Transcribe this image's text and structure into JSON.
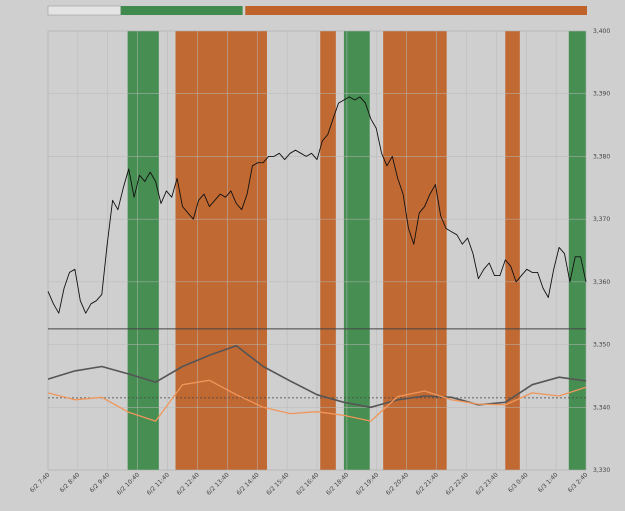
{
  "colors": {
    "background": "#cfcfcf",
    "grid": "#b8b8b8",
    "price_line": "#111111",
    "green_band": "#3f8a4c",
    "orange_band": "#c0632a",
    "indicator_gray": "#555555",
    "indicator_orange": "#f0965a",
    "top_bar_empty": "#e4e4e4"
  },
  "chart_data": {
    "type": "line",
    "x_tick_labels": [
      "6/2 7:40",
      "6/2 8:40",
      "6/2 9:40",
      "6/2 10:40",
      "6/2 11:40",
      "6/2 12:40",
      "6/2 13:40",
      "6/2 14:40",
      "6/2 15:40",
      "6/2 16:40",
      "6/2 18:40",
      "6/2 19:40",
      "6/2 20:40",
      "6/2 21:40",
      "6/2 22:40",
      "6/2 23:40",
      "6/3 0:40",
      "6/3 1:40",
      "6/3 2:40"
    ],
    "y_tick_labels": [
      "3,400",
      "3,390",
      "3,380",
      "3,370",
      "3,360",
      "3,350",
      "3,340",
      "3,330"
    ],
    "ylim": [
      3330,
      3400
    ],
    "xlim": [
      0,
      100
    ],
    "grid": true,
    "bands": [
      {
        "color": "green",
        "x0": 14.8,
        "x1": 20.6
      },
      {
        "color": "orange",
        "x0": 23.7,
        "x1": 40.7
      },
      {
        "color": "orange",
        "x0": 50.6,
        "x1": 53.5
      },
      {
        "color": "green",
        "x0": 55.0,
        "x1": 59.8
      },
      {
        "color": "orange",
        "x0": 62.3,
        "x1": 74.1
      },
      {
        "color": "orange",
        "x0": 85.0,
        "x1": 87.7
      },
      {
        "color": "green",
        "x0": 96.8,
        "x1": 100
      }
    ],
    "top_bar_segments": [
      {
        "color": "empty",
        "from": 0,
        "to": 0.135
      },
      {
        "color": "green",
        "from": 0.135,
        "to": 0.361
      },
      {
        "color": "orange",
        "from": 0.366,
        "to": 1.0
      }
    ],
    "series": [
      {
        "role": "price",
        "x": [
          0,
          1,
          2,
          3,
          4,
          5,
          6,
          7,
          8,
          9,
          10,
          11,
          12,
          13,
          14,
          15,
          16,
          17,
          18,
          19,
          20,
          21,
          22,
          23,
          24,
          25,
          26,
          27,
          28,
          29,
          30,
          31,
          32,
          33,
          34,
          35,
          36,
          37,
          38,
          39,
          40,
          41,
          42,
          43,
          44,
          45,
          46,
          47,
          48,
          49,
          50,
          51,
          52,
          53,
          54,
          55,
          56,
          57,
          58,
          59,
          60,
          61,
          62,
          63,
          64,
          65,
          66,
          67,
          68,
          69,
          70,
          71,
          72,
          73,
          74,
          75,
          76,
          77,
          78,
          79,
          80,
          81,
          82,
          83,
          84,
          85,
          86,
          87,
          88,
          89,
          90,
          91,
          92,
          93,
          94,
          95,
          96,
          97,
          98,
          99,
          100
        ],
        "y": [
          3358.5,
          3356.5,
          3355,
          3359,
          3361.5,
          3362,
          3357,
          3355,
          3356.5,
          3357,
          3358,
          3366,
          3373,
          3371.5,
          3375,
          3378,
          3373.5,
          3377,
          3376,
          3377.5,
          3376,
          3372.5,
          3374.5,
          3373.5,
          3376.5,
          3372,
          3371,
          3370,
          3373,
          3374,
          3372,
          3373,
          3374,
          3373.5,
          3374.5,
          3372.5,
          3371.5,
          3374,
          3378.5,
          3379,
          3379,
          3380,
          3380,
          3380.5,
          3379.5,
          3380.5,
          3381,
          3380.5,
          3380,
          3380.5,
          3379.5,
          3382.5,
          3383.5,
          3386,
          3388.5,
          3389,
          3389.5,
          3389,
          3389.5,
          3388.5,
          3386,
          3384.5,
          3380.5,
          3378.5,
          3380,
          3376.5,
          3374,
          3368.5,
          3366,
          3371,
          3372,
          3374,
          3375.5,
          3370.5,
          3368.5,
          3368,
          3367.5,
          3366,
          3367,
          3364.5,
          3360.5,
          3362,
          3363,
          3361,
          3361,
          3363.5,
          3362.5,
          3360,
          3361,
          3362,
          3361.5,
          3361.5,
          3359,
          3357.5,
          3362,
          3365.5,
          3364.5,
          3360,
          3364,
          3364,
          3360
        ]
      },
      {
        "role": "indicator_gray",
        "x": [
          0,
          5,
          10,
          15,
          20,
          25,
          30,
          35,
          40,
          45,
          50,
          55,
          60,
          65,
          70,
          75,
          80,
          85,
          90,
          95,
          100
        ],
        "y": [
          3344.5,
          3345.8,
          3346.5,
          3345.3,
          3344.0,
          3346.5,
          3348.3,
          3349.8,
          3346.5,
          3344.2,
          3342.0,
          3340.8,
          3340.0,
          3341.2,
          3341.8,
          3341.6,
          3340.4,
          3340.8,
          3343.6,
          3344.8,
          3344.2
        ]
      },
      {
        "role": "indicator_orange",
        "x": [
          0,
          5,
          10,
          15,
          20,
          25,
          30,
          35,
          40,
          45,
          50,
          55,
          60,
          65,
          70,
          75,
          80,
          85,
          90,
          95,
          100
        ],
        "y": [
          3342.3,
          3341.2,
          3341.6,
          3339.2,
          3337.8,
          3343.6,
          3344.3,
          3342.0,
          3340.0,
          3339.0,
          3339.3,
          3338.7,
          3337.8,
          3341.7,
          3342.6,
          3341.2,
          3340.5,
          3340.4,
          3342.3,
          3341.8,
          3343.2
        ]
      }
    ],
    "reference_lines": [
      {
        "style": "solid",
        "y": 3352.5
      },
      {
        "style": "dashed",
        "y": 3341.5
      }
    ]
  }
}
